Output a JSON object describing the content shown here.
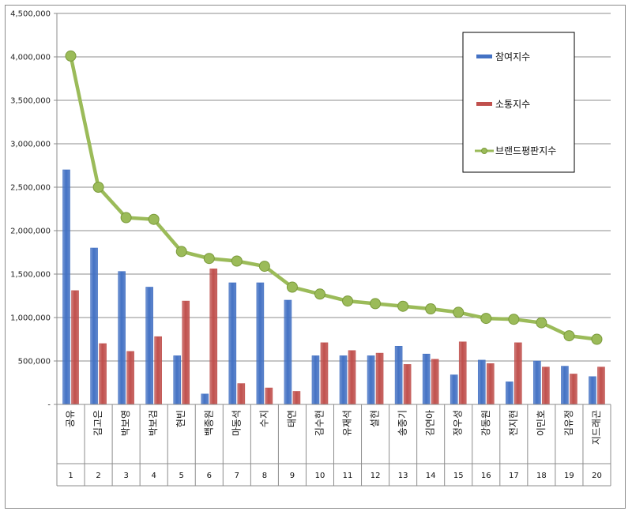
{
  "chart_data": {
    "type": "bar",
    "categories": [
      "공유",
      "김고은",
      "박보영",
      "박보검",
      "현빈",
      "백종원",
      "마동석",
      "수지",
      "태연",
      "김수현",
      "유재석",
      "설현",
      "송중기",
      "김연아",
      "정우성",
      "강동원",
      "전지현",
      "이민호",
      "김유정",
      "지드래곤"
    ],
    "ranks": [
      "1",
      "2",
      "3",
      "4",
      "5",
      "6",
      "7",
      "8",
      "9",
      "10",
      "11",
      "12",
      "13",
      "14",
      "15",
      "16",
      "17",
      "18",
      "19",
      "20"
    ],
    "ylim": [
      0,
      4500000
    ],
    "yticks": [
      0,
      500000,
      1000000,
      1500000,
      2000000,
      2500000,
      3000000,
      3500000,
      4000000,
      4500000
    ],
    "ytick_labels": [
      "-",
      "500,000",
      "1,000,000",
      "1,500,000",
      "2,000,000",
      "2,500,000",
      "3,000,000",
      "3,500,000",
      "4,000,000",
      "4,500,000"
    ],
    "grid": true,
    "legend_position": "top-right",
    "series": [
      {
        "name": "참여지수",
        "kind": "bar",
        "color": "#4472c4",
        "values": [
          2700000,
          1800000,
          1530000,
          1350000,
          560000,
          120000,
          1400000,
          1400000,
          1200000,
          560000,
          560000,
          560000,
          670000,
          580000,
          340000,
          510000,
          260000,
          500000,
          440000,
          320000
        ]
      },
      {
        "name": "소통지수",
        "kind": "bar",
        "color": "#c0504d",
        "values": [
          1310000,
          700000,
          610000,
          780000,
          1190000,
          1560000,
          240000,
          190000,
          150000,
          710000,
          620000,
          590000,
          460000,
          520000,
          720000,
          470000,
          710000,
          430000,
          350000,
          430000
        ]
      },
      {
        "name": "브랜드평판지수",
        "kind": "line",
        "color": "#9bbb59",
        "values": [
          4010000,
          2500000,
          2150000,
          2130000,
          1760000,
          1680000,
          1650000,
          1590000,
          1350000,
          1270000,
          1190000,
          1160000,
          1130000,
          1100000,
          1060000,
          990000,
          980000,
          940000,
          790000,
          750000
        ]
      }
    ]
  }
}
